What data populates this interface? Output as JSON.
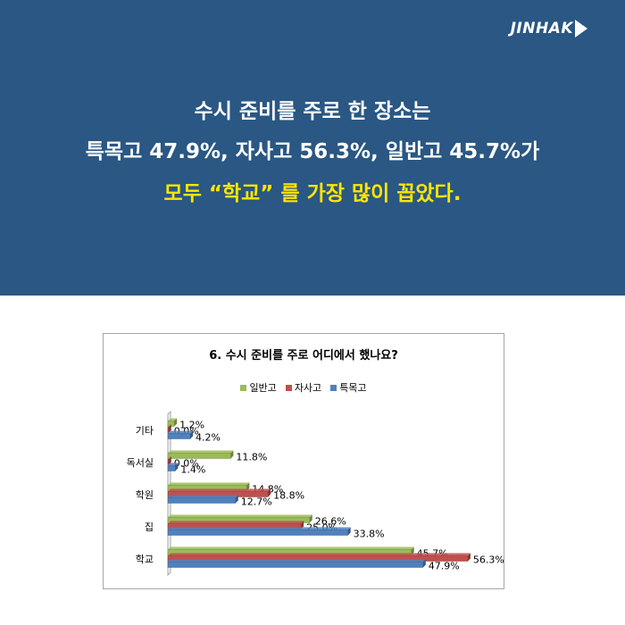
{
  "banner": {
    "logo_text": "JINHAK",
    "line1": "수시 준비를 주로 한 장소는",
    "line2": "특목고 47.9%, 자사고 56.3%, 일반고 45.7%가",
    "line3": "모두  “학교” 를 가장 많이 꼽았다."
  },
  "colors": {
    "banner_bg": "#2a5783",
    "highlight": "#ffe600",
    "series_general": "#9bbb59",
    "series_private": "#c0504d",
    "series_special": "#4f81bd"
  },
  "chart_data": {
    "type": "bar",
    "orientation": "horizontal",
    "title": "6. 수시 준비를 주로 어디에서 했나요?",
    "categories": [
      "기타",
      "독서실",
      "학원",
      "집",
      "학교"
    ],
    "series": [
      {
        "name": "일반고",
        "color": "#9bbb59",
        "values": [
          1.2,
          11.8,
          14.8,
          26.6,
          45.7
        ],
        "labels": [
          "1.2%",
          "11.8%",
          "14.8%",
          "26.6%",
          "45.7%"
        ]
      },
      {
        "name": "자사고",
        "color": "#c0504d",
        "values": [
          0.0,
          0.0,
          18.8,
          25.0,
          56.3
        ],
        "labels": [
          "0.0%",
          "0.0%",
          "18.8%",
          "25.0%",
          "56.3%"
        ]
      },
      {
        "name": "특목고",
        "color": "#4f81bd",
        "values": [
          4.2,
          1.4,
          12.7,
          33.8,
          47.9
        ],
        "labels": [
          "4.2%",
          "1.4%",
          "12.7%",
          "33.8%",
          "47.9%"
        ]
      }
    ],
    "xlim": [
      0,
      60
    ],
    "legend_position": "top",
    "grid": false,
    "style": "3d"
  }
}
